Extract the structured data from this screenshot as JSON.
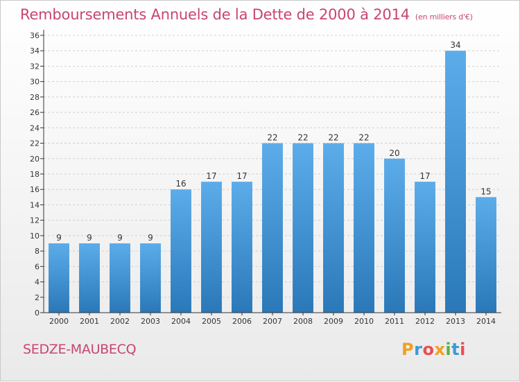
{
  "page": {
    "title": "Remboursements Annuels de la Dette de 2000 à 2014",
    "subtitle": "(en milliers d'€)",
    "commune": "SEDZE-MAUBECQ",
    "brand_letters": [
      "P",
      "r",
      "o",
      "x",
      "i",
      "t",
      "i"
    ],
    "brand_colors": [
      "#f0a020",
      "#3a9ad9",
      "#e84e4e",
      "#f0a020",
      "#5ab04a",
      "#3a9ad9",
      "#e84e4e"
    ]
  },
  "chart_data": {
    "type": "bar",
    "title": "Remboursements Annuels de la Dette de 2000 à 2014",
    "subtitle": "(en milliers d'€)",
    "categories": [
      "2000",
      "2001",
      "2002",
      "2003",
      "2004",
      "2005",
      "2006",
      "2007",
      "2008",
      "2009",
      "2010",
      "2011",
      "2012",
      "2013",
      "2014"
    ],
    "values": [
      9,
      9,
      9,
      9,
      16,
      17,
      17,
      22,
      22,
      22,
      22,
      20,
      17,
      34,
      15
    ],
    "ylim": [
      0,
      36
    ],
    "yticks": [
      0,
      2,
      4,
      6,
      8,
      10,
      12,
      14,
      16,
      18,
      20,
      22,
      24,
      26,
      28,
      30,
      32,
      34,
      36
    ],
    "grid": true,
    "data_labels": true,
    "colors": {
      "bar_top": "#5cacea",
      "bar_bottom": "#2a78b8",
      "grid": "#d0d0d0",
      "axis": "#333333",
      "title": "#c8456e"
    }
  }
}
